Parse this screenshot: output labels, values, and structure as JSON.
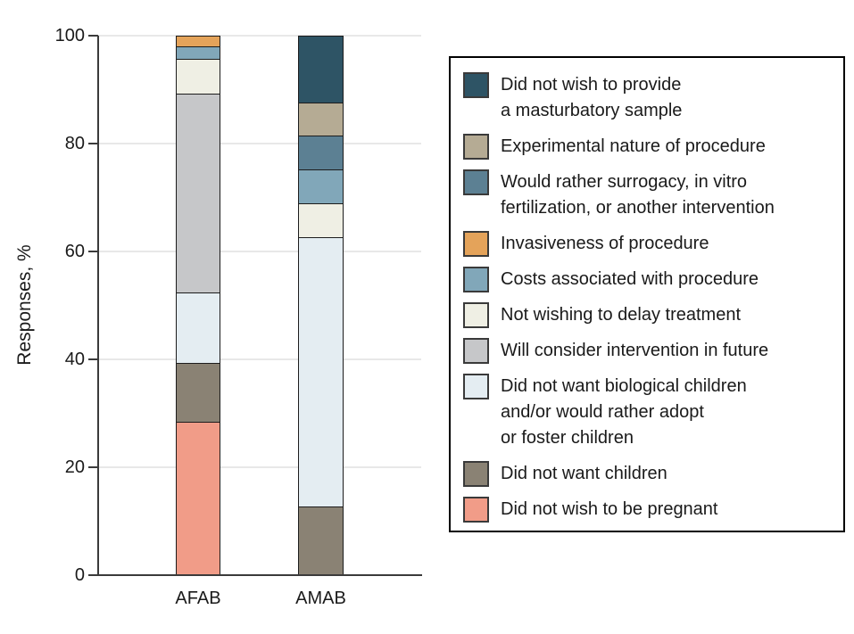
{
  "chart_data": {
    "type": "bar",
    "stacked": true,
    "title": "",
    "xlabel": "",
    "ylabel": "Responses, %",
    "ylim": [
      0,
      100
    ],
    "yticks": [
      0,
      20,
      40,
      60,
      80,
      100
    ],
    "grid": true,
    "legend_position": "right",
    "categories": [
      "AFAB",
      "AMAB"
    ],
    "series": [
      {
        "name": "Did not wish to provide a masturbatory sample",
        "legend_label": "Did not wish to provide\na masturbatory sample",
        "color": "#2E5465",
        "values": [
          0,
          12.5
        ]
      },
      {
        "name": "Experimental nature of procedure",
        "legend_label": "Experimental nature of procedure",
        "color": "#B5AB94",
        "values": [
          0,
          6.25
        ]
      },
      {
        "name": "Would rather surrogacy, in vitro fertilization, or another intervention",
        "legend_label": "Would rather surrogacy, in vitro\nfertilization, or another intervention",
        "color": "#5C8093",
        "values": [
          0,
          6.25
        ]
      },
      {
        "name": "Invasiveness of procedure",
        "legend_label": "Invasiveness of procedure",
        "color": "#E4A35A",
        "values": [
          2.2,
          0
        ]
      },
      {
        "name": "Costs associated with procedure",
        "legend_label": "Costs associated with procedure",
        "color": "#81A7B9",
        "values": [
          2.2,
          6.25
        ]
      },
      {
        "name": "Not wishing to delay treatment",
        "legend_label": "Not wishing to delay treatment",
        "color": "#EFEFE4",
        "values": [
          6.5,
          6.25
        ]
      },
      {
        "name": "Will consider intervention in future",
        "legend_label": "Will consider intervention in future",
        "color": "#C6C7C9",
        "values": [
          36.9,
          0
        ]
      },
      {
        "name": "Did not want biological children and/or would rather adopt or foster children",
        "legend_label": "Did not want biological children\nand/or would rather adopt\nor foster children",
        "color": "#E4EDF2",
        "values": [
          13.0,
          50.0
        ]
      },
      {
        "name": "Did not want children",
        "legend_label": "Did not want children",
        "color": "#8A8274",
        "values": [
          10.9,
          12.5
        ]
      },
      {
        "name": "Did not wish to be pregnant",
        "legend_label": "Did not wish to be pregnant",
        "color": "#F19C88",
        "values": [
          28.3,
          0
        ]
      }
    ]
  }
}
